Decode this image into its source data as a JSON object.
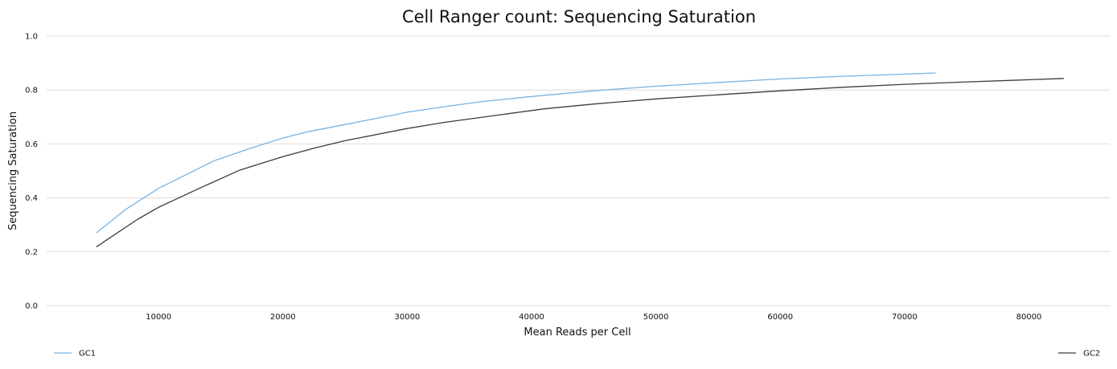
{
  "chart_data": {
    "type": "line",
    "title": "Cell Ranger count: Sequencing Saturation",
    "xlabel": "Mean Reads per Cell",
    "ylabel": "Sequencing Saturation",
    "xlim": [
      1000,
      86500
    ],
    "ylim": [
      0,
      1.0
    ],
    "xticks": [
      10000,
      20000,
      30000,
      40000,
      50000,
      60000,
      70000,
      80000
    ],
    "yticks": [
      "0.0",
      "0.2",
      "0.4",
      "0.6",
      "0.8",
      "1.0"
    ],
    "ytick_values": [
      0,
      0.2,
      0.4,
      0.6,
      0.8,
      1.0
    ],
    "grid": "horizontal",
    "legend_placement": "bottom",
    "series": [
      {
        "name": "GC1",
        "color": "#7ab3e0",
        "x": [
          5000,
          7300,
          10000,
          14500,
          17500,
          20000,
          22000,
          25000,
          29000,
          30000,
          33000,
          36000,
          40000,
          45000,
          50000,
          55000,
          60000,
          65000,
          70000,
          72500
        ],
        "y": [
          0.27,
          0.355,
          0.435,
          0.538,
          0.585,
          0.622,
          0.645,
          0.672,
          0.708,
          0.718,
          0.738,
          0.757,
          0.776,
          0.797,
          0.814,
          0.828,
          0.841,
          0.851,
          0.859,
          0.863
        ]
      },
      {
        "name": "GC2",
        "color": "#3c3c3c",
        "x": [
          5000,
          8300,
          10000,
          13500,
          16500,
          20000,
          22500,
          25000,
          30000,
          33000,
          37000,
          41000,
          45000,
          50000,
          55000,
          60000,
          65000,
          70000,
          75000,
          80000,
          82800
        ],
        "y": [
          0.218,
          0.32,
          0.365,
          0.44,
          0.502,
          0.553,
          0.584,
          0.612,
          0.657,
          0.68,
          0.705,
          0.73,
          0.748,
          0.767,
          0.782,
          0.797,
          0.81,
          0.821,
          0.83,
          0.838,
          0.843
        ]
      }
    ]
  }
}
